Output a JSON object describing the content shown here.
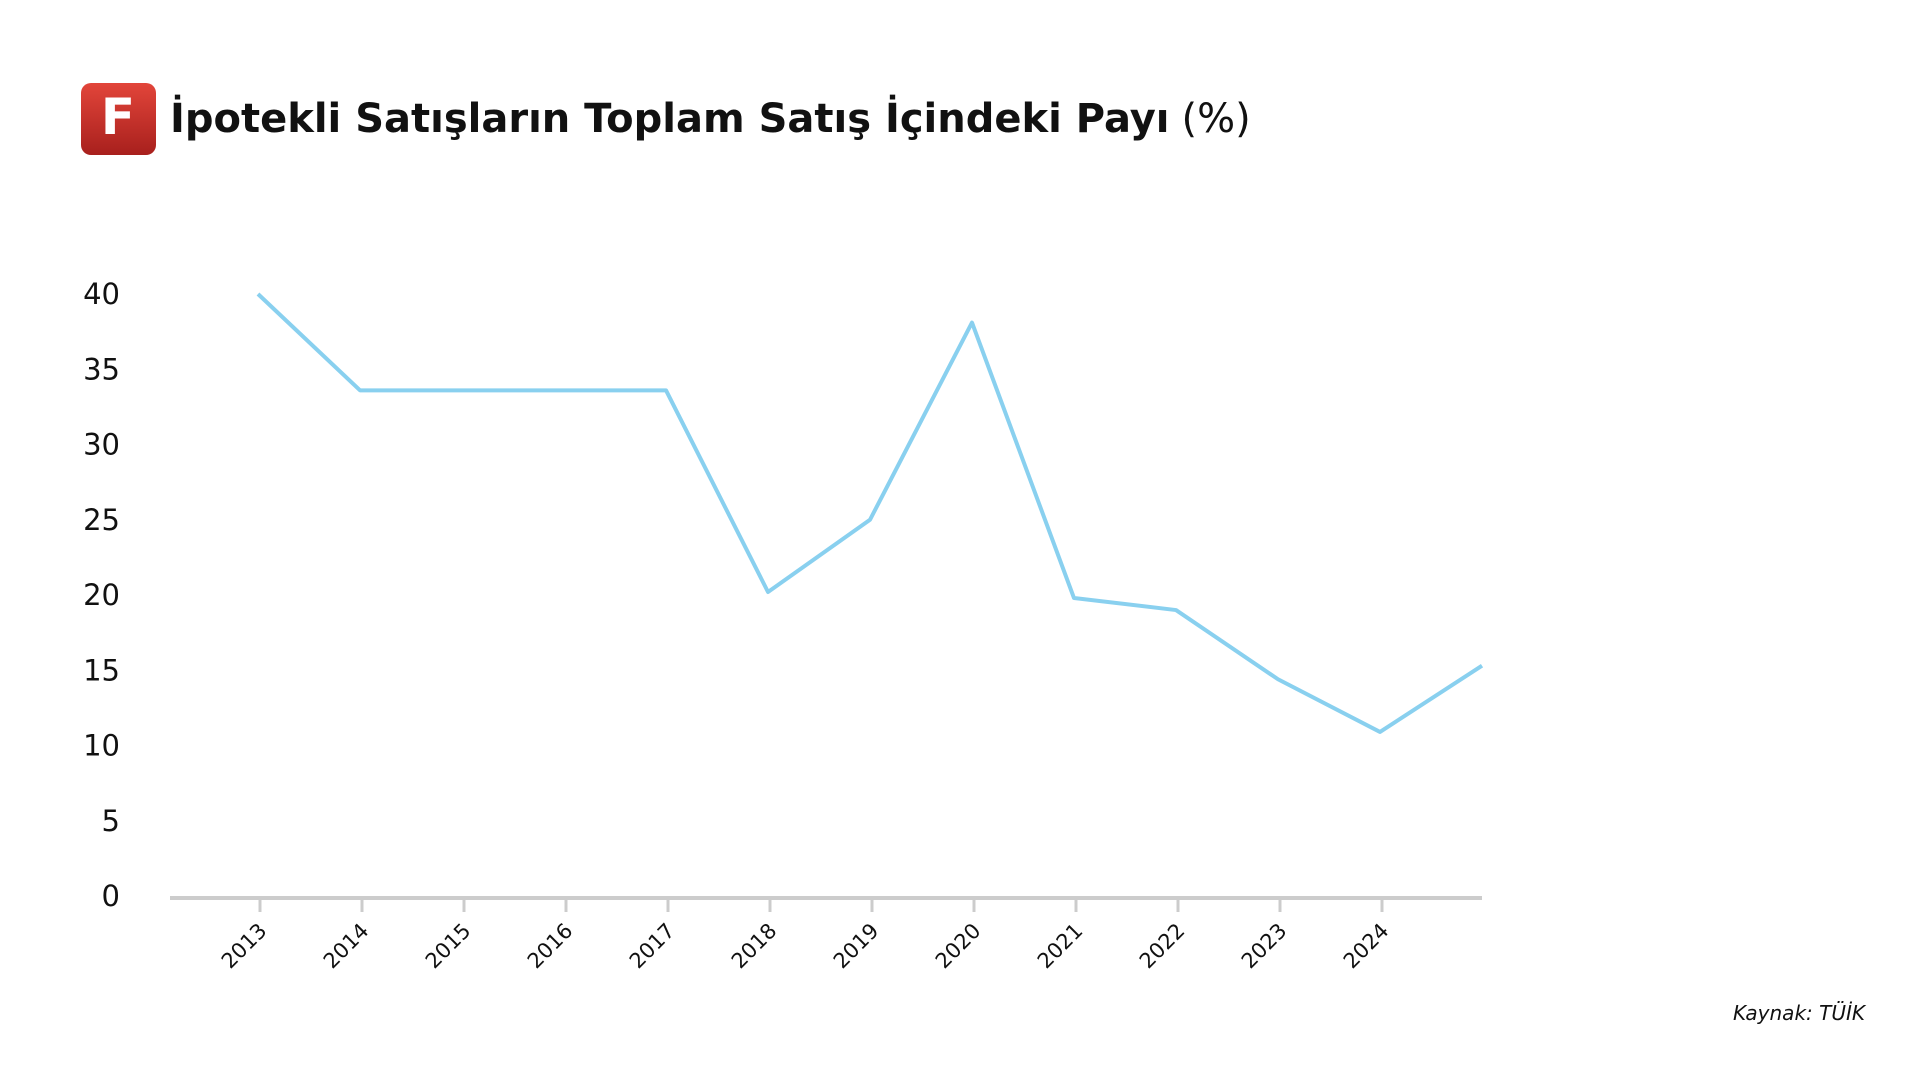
{
  "logo": "F",
  "chart_data": {
    "type": "line",
    "title": "İpotekli Satışların Toplam Satış İçindeki Payı",
    "title_unit": "(%)",
    "source": "Kaynak: TÜİK",
    "categories": [
      "2013",
      "2014",
      "2015",
      "2016",
      "2017",
      "2018",
      "2019",
      "2020",
      "2021",
      "2022",
      "2023",
      "2024",
      null
    ],
    "values": [
      40,
      33.6,
      33.6,
      33.6,
      33.6,
      20.2,
      25.0,
      38.1,
      19.8,
      19.0,
      14.4,
      10.9,
      15.3
    ],
    "color": "#89d0ef",
    "ylim": [
      0,
      40
    ],
    "yticks": [
      0,
      5,
      10,
      15,
      20,
      25,
      30,
      35,
      40
    ],
    "grid": false
  }
}
